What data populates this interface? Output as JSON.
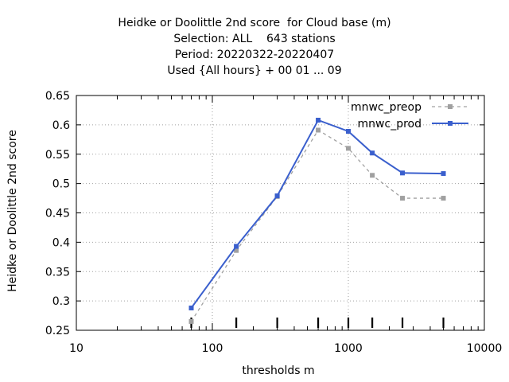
{
  "chart_data": {
    "type": "line",
    "title_lines": [
      "Heidke or Doolittle 2nd score  for Cloud base (m)",
      "Selection: ALL    643 stations",
      "Period: 20220322-20220407",
      "Used {All hours} + 00 01 ... 09"
    ],
    "xlabel": "thresholds m",
    "ylabel": "Heidke or Doolittle 2nd score",
    "x_scale": "log",
    "xlim": [
      10,
      10000
    ],
    "ylim": [
      0.25,
      0.65
    ],
    "x_ticks": [
      10,
      100,
      1000,
      10000
    ],
    "x_tick_labels": [
      "10",
      "100",
      "1000",
      "10000"
    ],
    "y_ticks": [
      0.25,
      0.3,
      0.35,
      0.4,
      0.45,
      0.5,
      0.55,
      0.6,
      0.65
    ],
    "y_tick_labels": [
      "0.25",
      "0.3",
      "0.35",
      "0.4",
      "0.45",
      "0.5",
      "0.55",
      "0.6",
      "0.65"
    ],
    "grid": true,
    "legend_position": "top-right",
    "threshold_markers": [
      70,
      150,
      300,
      600,
      1000,
      1500,
      2500,
      5000
    ],
    "series": [
      {
        "name": "mnwc_preop",
        "color": "#a0a0a0",
        "dashed": true,
        "x": [
          70,
          150,
          300,
          600,
          1000,
          1500,
          2500,
          5000
        ],
        "y": [
          0.265,
          0.386,
          0.478,
          0.591,
          0.56,
          0.514,
          0.475,
          0.475
        ]
      },
      {
        "name": "mnwc_prod",
        "color": "#3a5fcd",
        "dashed": false,
        "x": [
          70,
          150,
          300,
          600,
          1000,
          1500,
          2500,
          5000
        ],
        "y": [
          0.288,
          0.393,
          0.479,
          0.608,
          0.589,
          0.552,
          0.518,
          0.517
        ]
      }
    ]
  }
}
